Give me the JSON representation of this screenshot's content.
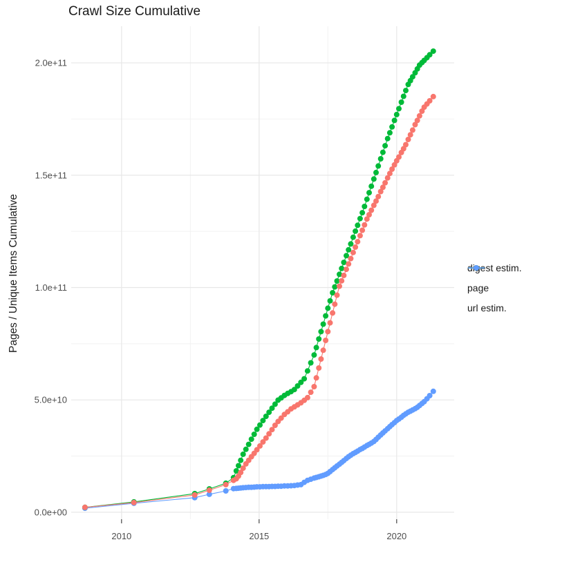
{
  "style": {
    "background": "#FFFFFF",
    "text_color": "#1A1A1A",
    "axis_text_color": "#4D4D4D",
    "grid_major": "#E7E7E7",
    "grid_minor": "#F2F2F2",
    "tick_color": "#333333"
  },
  "chart_data": {
    "type": "line",
    "title": "Crawl Size Cumulative",
    "xlabel": "",
    "ylabel": "Pages / Unique Items Cumulative",
    "legend_position": "right",
    "grid": true,
    "marker": "point",
    "values_unit": "pages / unique items, values given in units of 1e9 (billions)",
    "x_axis": {
      "tick_labels": [
        "2010",
        "2015",
        "2020"
      ],
      "tick_values": [
        2010,
        2015,
        2020
      ],
      "minor_values": [
        2012.5,
        2017.5
      ],
      "range": [
        2008.17,
        2022.09
      ]
    },
    "y_axis": {
      "tick_labels": [
        "0.0e+00",
        "5.0e+10",
        "1.0e+11",
        "1.5e+11",
        "2.0e+11"
      ],
      "tick_values_e9": [
        0,
        50,
        100,
        150,
        200
      ],
      "minor_values_e9": [
        25,
        75,
        125,
        175
      ],
      "range_e9": [
        -3.1,
        216.3
      ]
    },
    "x": [
      2008.67,
      2010.45,
      2012.66,
      2013.19,
      2013.79,
      2014.07,
      2014.17,
      2014.25,
      2014.33,
      2014.42,
      2014.52,
      2014.62,
      2014.72,
      2014.82,
      2014.92,
      2015.03,
      2015.14,
      2015.25,
      2015.36,
      2015.47,
      2015.58,
      2015.69,
      2015.8,
      2015.92,
      2016.04,
      2016.16,
      2016.28,
      2016.4,
      2016.52,
      2016.64,
      2016.76,
      2016.88,
      2017.0,
      2017.08,
      2017.17,
      2017.25,
      2017.33,
      2017.42,
      2017.5,
      2017.58,
      2017.67,
      2017.75,
      2017.83,
      2017.92,
      2018.0,
      2018.08,
      2018.17,
      2018.25,
      2018.33,
      2018.42,
      2018.5,
      2018.58,
      2018.67,
      2018.75,
      2018.83,
      2018.92,
      2019.0,
      2019.08,
      2019.17,
      2019.25,
      2019.33,
      2019.42,
      2019.5,
      2019.58,
      2019.67,
      2019.75,
      2019.83,
      2019.92,
      2020.0,
      2020.08,
      2020.17,
      2020.25,
      2020.33,
      2020.42,
      2020.5,
      2020.58,
      2020.67,
      2020.75,
      2020.83,
      2020.92,
      2021.0,
      2021.1,
      2021.2,
      2021.33
    ],
    "series": [
      {
        "name": "digest estim.",
        "color": "#F8766D",
        "z": 3,
        "values_e9": [
          2.2,
          4.3,
          7.7,
          9.8,
          12.3,
          14.2,
          14.9,
          16.1,
          17.7,
          19.6,
          21.5,
          23.1,
          24.7,
          26.2,
          27.8,
          29.5,
          31.3,
          33.0,
          34.9,
          36.8,
          38.7,
          40.4,
          41.9,
          43.5,
          44.7,
          46.0,
          46.9,
          47.8,
          48.7,
          49.8,
          51.0,
          53.4,
          55.9,
          59.8,
          64.2,
          68.2,
          72.1,
          76.5,
          80.4,
          84.3,
          88.7,
          92.6,
          96.6,
          100.6,
          103.0,
          105.4,
          108.1,
          110.5,
          112.9,
          115.6,
          118.0,
          120.4,
          123.1,
          125.5,
          127.9,
          130.5,
          132.4,
          134.4,
          136.6,
          138.5,
          140.5,
          142.7,
          144.6,
          146.6,
          148.8,
          150.8,
          152.7,
          154.6,
          156.4,
          158.1,
          160.1,
          161.8,
          163.6,
          165.9,
          168.0,
          170.1,
          172.5,
          174.4,
          176.4,
          178.5,
          180.3,
          181.7,
          183.1,
          185.0
        ]
      },
      {
        "name": "page",
        "color": "#00BA38",
        "z": 2,
        "values_e9": [
          2.2,
          4.6,
          8.3,
          10.4,
          12.9,
          15.4,
          18.4,
          20.7,
          23.1,
          25.8,
          28.0,
          30.2,
          32.5,
          34.7,
          36.9,
          38.8,
          40.8,
          42.7,
          44.5,
          46.3,
          48.1,
          49.9,
          50.9,
          52.0,
          52.9,
          53.7,
          54.6,
          56.2,
          57.8,
          59.4,
          62.9,
          66.5,
          70.0,
          73.3,
          77.1,
          80.4,
          83.7,
          87.4,
          90.8,
          94.1,
          97.7,
          100.3,
          102.9,
          105.9,
          108.5,
          111.2,
          114.2,
          116.8,
          119.4,
          122.4,
          125.1,
          127.7,
          130.7,
          133.3,
          136.1,
          139.3,
          142.2,
          145.1,
          148.3,
          151.2,
          154.1,
          157.3,
          160.2,
          163.1,
          166.3,
          168.9,
          171.5,
          174.4,
          177.0,
          179.6,
          182.5,
          185.1,
          187.7,
          190.4,
          192.1,
          193.8,
          195.6,
          197.3,
          199.0,
          200.1,
          201.1,
          202.3,
          203.6,
          205.2
        ]
      },
      {
        "name": "url estim.",
        "color": "#619CFF",
        "z": 1,
        "values_e9": [
          1.8,
          4.0,
          6.5,
          8.0,
          9.5,
          10.5,
          10.6,
          10.7,
          10.8,
          10.9,
          11.0,
          11.1,
          11.1,
          11.2,
          11.3,
          11.3,
          11.4,
          11.4,
          11.4,
          11.5,
          11.5,
          11.6,
          11.6,
          11.7,
          11.7,
          11.8,
          11.9,
          12.1,
          12.3,
          13.3,
          14.2,
          14.7,
          15.2,
          15.5,
          15.8,
          16.1,
          16.4,
          16.8,
          17.3,
          18.1,
          19.0,
          19.8,
          20.6,
          21.4,
          22.2,
          23.0,
          23.9,
          24.7,
          25.4,
          26.1,
          26.6,
          27.2,
          27.9,
          28.4,
          29.0,
          29.7,
          30.2,
          30.8,
          31.5,
          32.4,
          33.4,
          34.4,
          35.3,
          36.2,
          37.2,
          38.1,
          39.0,
          39.9,
          40.8,
          41.5,
          42.3,
          43.1,
          43.8,
          44.5,
          45.0,
          45.5,
          46.1,
          46.7,
          47.5,
          48.4,
          49.2,
          50.5,
          51.9,
          53.8
        ]
      }
    ]
  }
}
